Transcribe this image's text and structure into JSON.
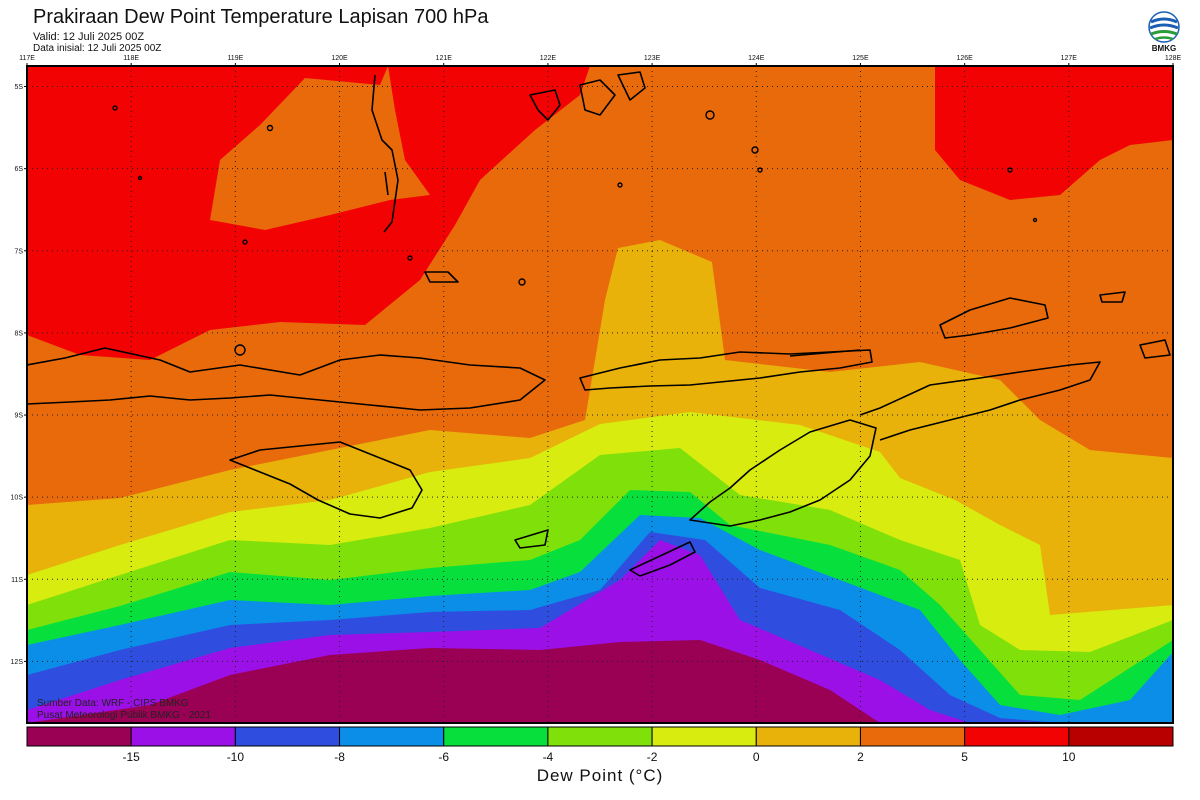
{
  "header": {
    "title": "Prakiraan Dew Point Temperature Lapisan 700 hPa",
    "valid": "Valid: 12 Juli 2025 00Z",
    "initial": "Data inisial: 12 Juli 2025 00Z"
  },
  "logo": {
    "icon": "bmkg-logo-icon",
    "text": "BMKG"
  },
  "map": {
    "lon_labels": [
      "117E",
      "118E",
      "119E",
      "120E",
      "121E",
      "122E",
      "123E",
      "124E",
      "125E",
      "126E",
      "127E",
      "128E"
    ],
    "lat_labels": [
      "5S",
      "6S",
      "7S",
      "8S",
      "9S",
      "10S",
      "11S",
      "12S"
    ],
    "lon_range": [
      117,
      128
    ],
    "lat_range": [
      -4.75,
      -12.75
    ],
    "gridlines": "dotted"
  },
  "credits": {
    "source": "Sumber Data: WRF - CIPS BMKG",
    "publisher": "Pusat Meteorologi Publik BMKG - 2021"
  },
  "colorbar": {
    "title": "Dew Point (°C)",
    "tick_labels": [
      "-15",
      "-10",
      "-8",
      "-6",
      "-4",
      "-2",
      "0",
      "2",
      "5",
      "10"
    ],
    "colors": [
      "#9a0054",
      "#9b10e6",
      "#2f4ee0",
      "#0a8ee8",
      "#07e03c",
      "#7fe00a",
      "#d8ec10",
      "#e8b20a",
      "#e86a0a",
      "#f20202",
      "#b80000"
    ]
  }
}
